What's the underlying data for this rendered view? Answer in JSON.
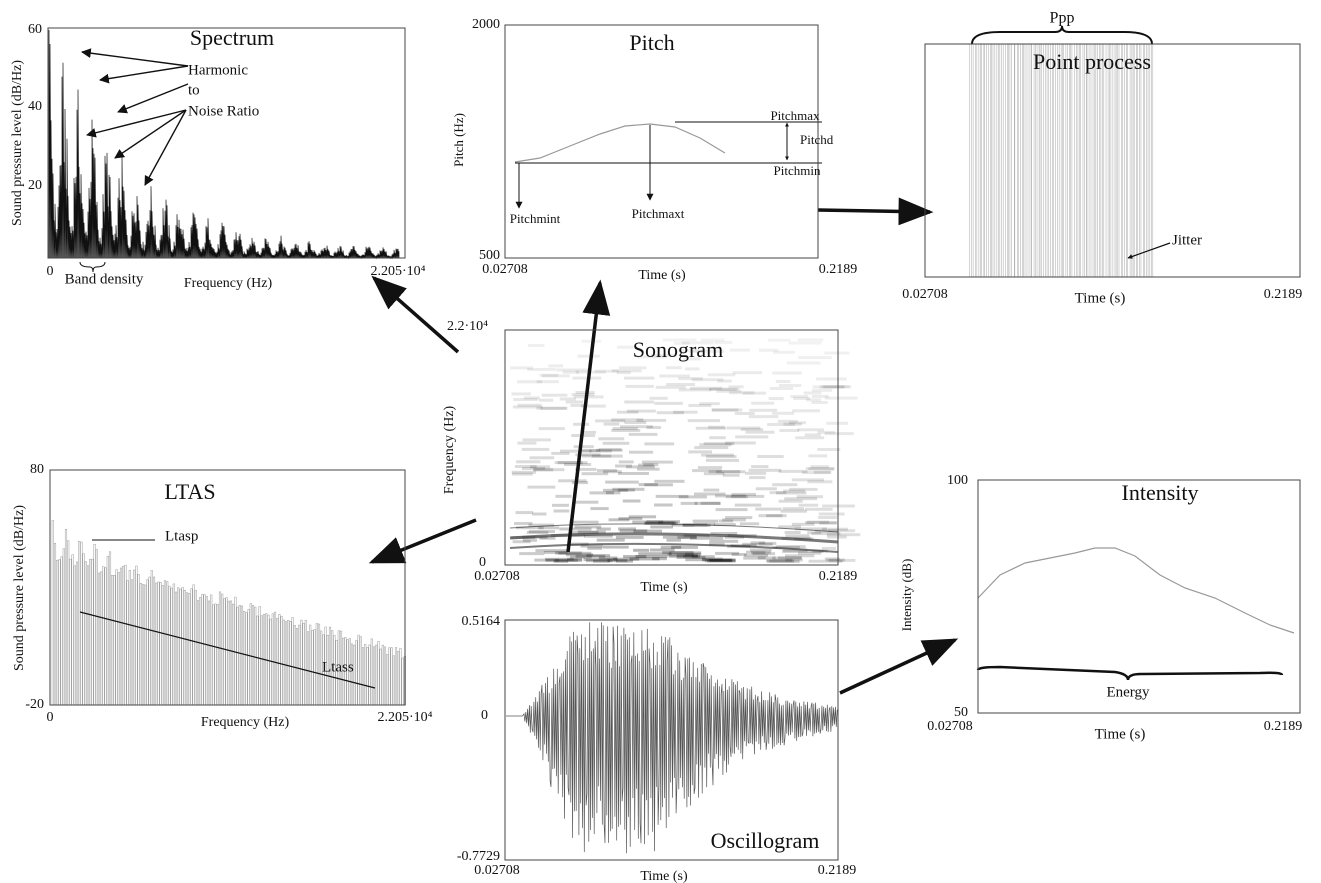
{
  "panels": {
    "spectrum": {
      "title": "Spectrum",
      "y_label": "Sound pressure level (dB/Hz)",
      "y_ticks": [
        "60",
        "40",
        "20"
      ],
      "x_ticks": [
        "0",
        "2.205·10⁴"
      ],
      "x_label": "Frequency (Hz)",
      "annotations": [
        "Harmonic",
        "to",
        "Noise Ratio",
        "Band density"
      ]
    },
    "pitch": {
      "title": "Pitch",
      "y_label": "Pitch (Hz)",
      "y_ticks": [
        "2000",
        "500"
      ],
      "x_ticks": [
        "0.02708",
        "0.2189"
      ],
      "x_label": "Time (s)",
      "annotations": [
        "Pitchmax",
        "Pitchd",
        "Pitchmin",
        "Pitchmint",
        "Pitchmaxt"
      ]
    },
    "point_process": {
      "title": "Point process",
      "x_ticks": [
        "0.02708",
        "0.2189"
      ],
      "x_label": "Time (s)",
      "annotations": [
        "Ppp",
        "Jitter"
      ]
    },
    "sonogram": {
      "title": "Sonogram",
      "y_label": "Frequency (Hz)",
      "y_ticks": [
        "2.2·10⁴",
        "0"
      ],
      "x_ticks": [
        "0.02708",
        "0.2189"
      ],
      "x_label": "Time (s)"
    },
    "ltas": {
      "title": "LTAS",
      "y_label": "Sound pressure level (dB/Hz)",
      "y_ticks": [
        "80",
        "-20"
      ],
      "x_ticks": [
        "0",
        "2.205·10⁴"
      ],
      "x_label": "Frequency (Hz)",
      "annotations": [
        "Ltasp",
        "Ltass"
      ]
    },
    "oscillogram": {
      "title": "Oscillogram",
      "y_ticks": [
        "0.5164",
        "0",
        "-0.7729"
      ],
      "x_ticks": [
        "0.02708",
        "0.2189"
      ],
      "x_label": "Time (s)"
    },
    "intensity": {
      "title": "Intensity",
      "y_label": "Intensity (dB)",
      "y_ticks": [
        "100",
        "50"
      ],
      "x_ticks": [
        "0.02708",
        "0.2189"
      ],
      "x_label": "Time (s)",
      "annotations": [
        "Energy"
      ]
    }
  }
}
